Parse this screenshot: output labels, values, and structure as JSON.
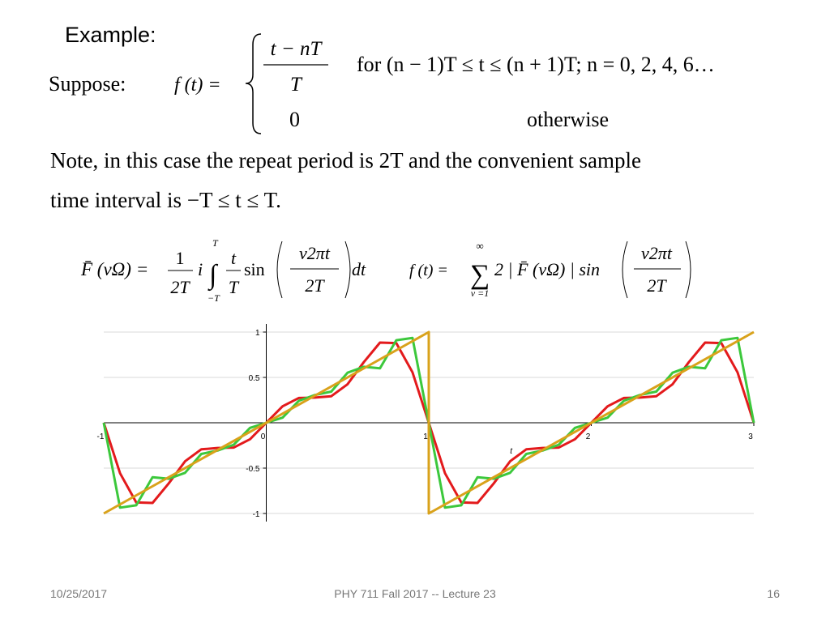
{
  "header": {
    "title": "Example:"
  },
  "definition": {
    "suppose": "Suppose:",
    "lhs": "f (t) =",
    "piece1_numerator": "t − nT",
    "piece1_denominator": "T",
    "piece1_condition": "for (n − 1)T ≤ t ≤ (n + 1)T;   n = 0, 2, 4, 6…",
    "piece2_value": "0",
    "piece2_condition": "otherwise"
  },
  "note": {
    "line1": "Note, in this case the repeat period is 2T and the convenient sample",
    "line2": "time interval is  −T ≤ t ≤ T."
  },
  "formula1": {
    "lhs": "F̄ (νΩ) =",
    "frac_num": "1",
    "frac_den": "2T",
    "i": "i",
    "integral": "∫",
    "upper": "T",
    "lower": "−T",
    "t_num": "t",
    "t_den": "T",
    "sin": "sin",
    "arg_num": "ν2πt",
    "arg_den": "2T",
    "dt": "dt"
  },
  "formula2": {
    "lhs": "f (t) =",
    "sum": "∑",
    "upper": "∞",
    "lower": "ν =1",
    "body": "2 | F̄ (νΩ) | sin",
    "arg_num": "ν2πt",
    "arg_den": "2T"
  },
  "chart_data": {
    "type": "line",
    "x_label": "t",
    "xlim": [
      -1,
      3
    ],
    "ylim": [
      -1,
      1
    ],
    "xticks": [
      -1,
      0,
      1,
      2,
      3
    ],
    "yticks": [
      -1,
      -0.5,
      0.5,
      1
    ],
    "grid": true,
    "x": [
      -1,
      -0.9,
      -0.8,
      -0.7,
      -0.6,
      -0.5,
      -0.4,
      -0.3,
      -0.2,
      -0.1,
      0,
      0.1,
      0.2,
      0.3,
      0.4,
      0.5,
      0.6,
      0.7,
      0.8,
      0.9,
      1,
      1.1,
      1.2,
      1.3,
      1.4,
      1.5,
      1.6,
      1.7,
      1.8,
      1.9,
      2,
      2.1,
      2.2,
      2.3,
      2.4,
      2.5,
      2.6,
      2.7,
      2.8,
      2.9,
      3
    ],
    "series": [
      {
        "color": "#e31a1c",
        "values": [
          0,
          -0.556,
          -0.879,
          -0.884,
          -0.668,
          -0.425,
          -0.293,
          -0.278,
          -0.273,
          -0.181,
          0,
          0.181,
          0.273,
          0.278,
          0.293,
          0.425,
          0.668,
          0.884,
          0.879,
          0.556,
          0,
          -0.556,
          -0.879,
          -0.884,
          -0.668,
          -0.425,
          -0.293,
          -0.278,
          -0.273,
          -0.181,
          0,
          0.181,
          0.273,
          0.278,
          0.293,
          0.425,
          0.668,
          0.884,
          0.879,
          0.556,
          0
        ]
      },
      {
        "color": "#3cc83c",
        "values": [
          0,
          -0.936,
          -0.91,
          -0.6,
          -0.617,
          -0.552,
          -0.344,
          -0.306,
          -0.242,
          -0.056,
          0,
          0.056,
          0.242,
          0.306,
          0.344,
          0.552,
          0.617,
          0.6,
          0.91,
          0.936,
          0,
          -0.936,
          -0.91,
          -0.6,
          -0.617,
          -0.552,
          -0.344,
          -0.306,
          -0.242,
          -0.056,
          0,
          0.056,
          0.242,
          0.306,
          0.344,
          0.552,
          0.617,
          0.6,
          0.91,
          0.936,
          0
        ]
      },
      {
        "color": "#d9a21b",
        "x": [
          -1,
          1,
          1,
          3
        ],
        "values": [
          -1,
          1,
          -1,
          1
        ]
      }
    ]
  },
  "footer": {
    "date": "10/25/2017",
    "course": "PHY 711  Fall 2017 -- Lecture 23",
    "page": "16"
  }
}
